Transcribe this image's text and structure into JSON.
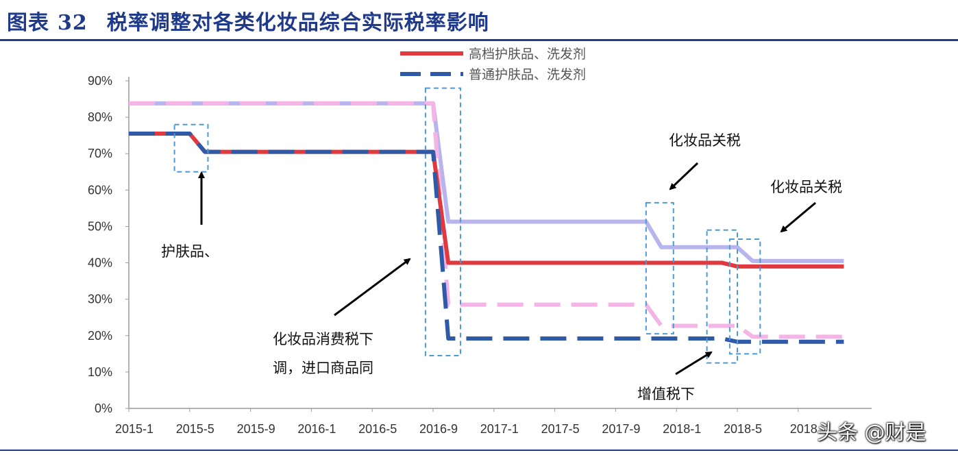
{
  "header": {
    "label": "图表",
    "number": "32",
    "title": "税率调整对各类化妆品综合实际税率影响"
  },
  "watermark": "头条 @财是",
  "chart_data": {
    "type": "line",
    "title": "税率调整对各类化妆品综合实际税率影响",
    "xlabel": "",
    "ylabel": "",
    "x_ticks": [
      "2015-1",
      "2015-5",
      "2015-9",
      "2016-1",
      "2016-5",
      "2016-9",
      "2017-1",
      "2017-5",
      "2017-9",
      "2018-1",
      "2018-5",
      "2018"
    ],
    "ylim": [
      0,
      0.9
    ],
    "y_ticks": [
      "0%",
      "10%",
      "20%",
      "30%",
      "40%",
      "50%",
      "60%",
      "70%",
      "80%",
      "90%"
    ],
    "grid": false,
    "legend_position": "top",
    "series": [
      {
        "name": "高档护肤品、洗发剂",
        "color": "#e0393e",
        "dash": "solid",
        "points": [
          [
            "2015-1",
            0.755
          ],
          [
            "2015-5",
            0.755
          ],
          [
            "2015-6",
            0.705
          ],
          [
            "2016-9",
            0.705
          ],
          [
            "2016-10",
            0.4
          ],
          [
            "2018-4",
            0.4
          ],
          [
            "2018-5",
            0.39
          ],
          [
            "2018-12",
            0.39
          ]
        ]
      },
      {
        "name": "普通护肤品、洗发剂",
        "color": "#2e5aa8",
        "dash": "dashed",
        "points": [
          [
            "2015-1",
            0.755
          ],
          [
            "2015-5",
            0.755
          ],
          [
            "2015-6",
            0.705
          ],
          [
            "2016-9",
            0.705
          ],
          [
            "2016-10",
            0.192
          ],
          [
            "2018-4",
            0.192
          ],
          [
            "2018-5",
            0.183
          ],
          [
            "2018-12",
            0.183
          ]
        ]
      },
      {
        "name": "",
        "color": "#b8b4ee",
        "dash": "solid",
        "points": [
          [
            "2015-1",
            0.838
          ],
          [
            "2016-9",
            0.838
          ],
          [
            "2016-10",
            0.513
          ],
          [
            "2017-11",
            0.513
          ],
          [
            "2017-12",
            0.443
          ],
          [
            "2018-5",
            0.443
          ],
          [
            "2018-6",
            0.405
          ],
          [
            "2018-12",
            0.405
          ]
        ]
      },
      {
        "name": "",
        "color": "#f4b4e6",
        "dash": "dashed",
        "points": [
          [
            "2015-1",
            0.838
          ],
          [
            "2016-9",
            0.838
          ],
          [
            "2016-10",
            0.285
          ],
          [
            "2017-11",
            0.285
          ],
          [
            "2017-12",
            0.227
          ],
          [
            "2018-5",
            0.227
          ],
          [
            "2018-6",
            0.197
          ],
          [
            "2018-12",
            0.197
          ]
        ]
      }
    ],
    "annotations": [
      {
        "lines": [
          "护肤品、"
        ],
        "period": "2015-5"
      },
      {
        "lines": [
          "化妆品消费税下",
          "调，进口商品同"
        ],
        "period": "2016-10"
      },
      {
        "lines": [
          "化妆品关税"
        ],
        "period": "2017-12"
      },
      {
        "lines": [
          "增值税下"
        ],
        "period": "2018-4"
      },
      {
        "lines": [
          "化妆品关税"
        ],
        "period": "2018-6"
      }
    ]
  }
}
